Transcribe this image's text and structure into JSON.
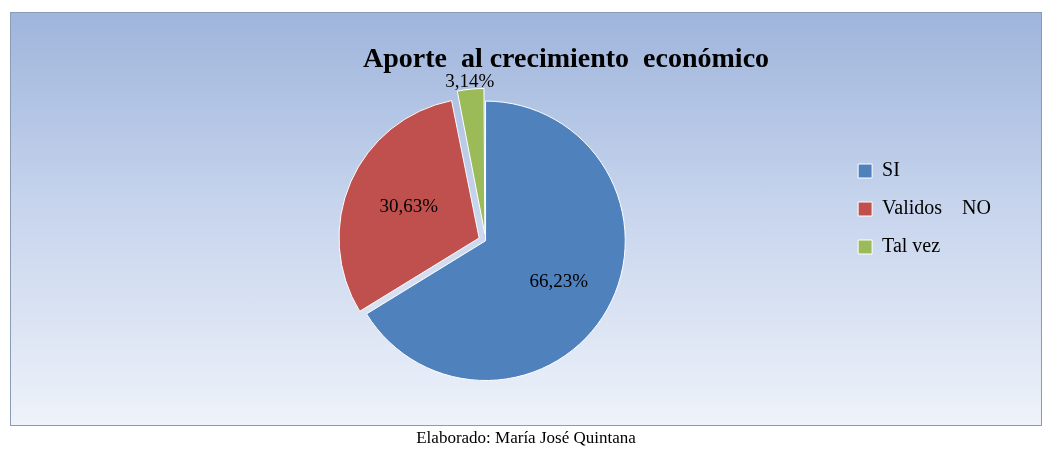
{
  "chart_data": {
    "type": "pie",
    "title": "Aporte  al crecimiento  económico",
    "categories": [
      "SI",
      "Validos    NO",
      "Tal vez"
    ],
    "values": [
      66.23,
      30.63,
      3.14
    ],
    "colors": [
      "#4f81bd",
      "#c0504d",
      "#9bbb59"
    ],
    "value_labels": [
      "66,23%",
      "30,63%",
      "3,14%"
    ],
    "legend": "right",
    "annotations": [
      "Elaborado: María José Quintana"
    ]
  }
}
